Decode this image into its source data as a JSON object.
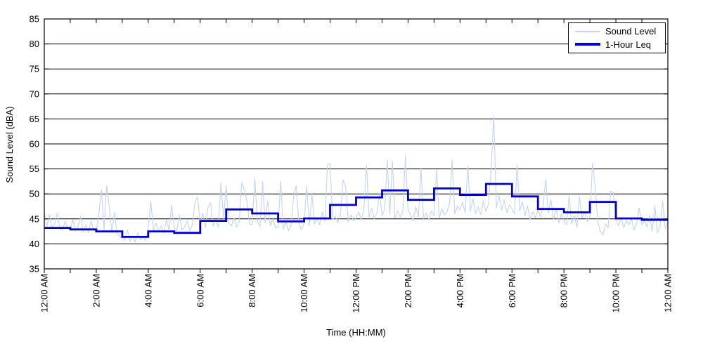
{
  "chart_data": {
    "type": "line",
    "title": "",
    "xlabel": "Time (HH:MM)",
    "ylabel": "Sound Level (dBA)",
    "xlim_hours": [
      0,
      24
    ],
    "ylim": [
      35,
      85
    ],
    "grid": "horizontal-solid-black",
    "legend_position": "top-right",
    "background": "#ffffff",
    "axis_color": "#000000",
    "yticks": [
      35,
      40,
      45,
      50,
      55,
      60,
      65,
      70,
      75,
      80,
      85
    ],
    "xticks": {
      "hours": [
        0,
        2,
        4,
        6,
        8,
        10,
        12,
        14,
        16,
        18,
        20,
        22,
        24
      ],
      "labels": [
        "12:00 AM",
        "2:00 AM",
        "4:00 AM",
        "6:00 AM",
        "8:00 AM",
        "10:00 AM",
        "12:00 PM",
        "2:00 PM",
        "4:00 PM",
        "6:00 PM",
        "8:00 PM",
        "10:00 PM",
        "12:00 AM"
      ]
    },
    "minor_xtick_every_hours": 1,
    "series": [
      {
        "name": "Sound Level",
        "kind": "line",
        "color": "#c3d4f2",
        "width": 1.1,
        "start_hour": 0,
        "sample_interval_min": 6,
        "values": [
          46.3,
          43.5,
          45.8,
          43.2,
          44.0,
          46.2,
          43.0,
          42.7,
          44.5,
          43.2,
          43.0,
          44.8,
          42.6,
          43.4,
          45.5,
          42.4,
          43.8,
          42.2,
          44.6,
          42.8,
          42.5,
          46.0,
          50.9,
          42.8,
          51.6,
          47.5,
          42.2,
          46.3,
          42.0,
          41.6,
          41.2,
          40.7,
          42.8,
          40.5,
          41.6,
          40.4,
          42.2,
          40.8,
          41.4,
          40.6,
          43.0,
          48.5,
          42.6,
          44.2,
          42.4,
          43.6,
          42.2,
          44.8,
          42.8,
          47.8,
          43.2,
          42.6,
          45.8,
          42.8,
          43.4,
          44.6,
          42.6,
          43.8,
          48.3,
          49.5,
          44.0,
          46.1,
          43.2,
          47.3,
          48.2,
          43.6,
          44.8,
          43.4,
          52.2,
          45.0,
          51.6,
          44.2,
          43.6,
          45.2,
          43.4,
          44.4,
          52.3,
          50.8,
          48.6,
          44.0,
          43.8,
          53.2,
          44.6,
          43.4,
          52.5,
          44.2,
          48.6,
          43.6,
          45.0,
          43.2,
          43.4,
          52.5,
          43.0,
          44.4,
          42.6,
          43.8,
          49.5,
          51.6,
          44.0,
          42.8,
          44.2,
          51.6,
          43.6,
          50.0,
          44.0,
          45.2,
          43.8,
          46.4,
          44.6,
          55.9,
          56.1,
          44.8,
          45.6,
          44.2,
          46.0,
          52.8,
          51.4,
          44.4,
          45.8,
          44.6,
          45.2,
          46.4,
          44.8,
          46.8,
          55.8,
          45.4,
          47.2,
          45.0,
          46.2,
          50.0,
          45.6,
          47.0,
          56.8,
          46.0,
          56.5,
          45.2,
          46.6,
          45.4,
          46.4,
          57.6,
          46.8,
          45.8,
          44.6,
          47.4,
          45.4,
          55.0,
          45.0,
          46.2,
          44.8,
          46.6,
          45.6,
          54.8,
          45.2,
          47.0,
          45.8,
          46.4,
          48.2,
          56.8,
          46.0,
          47.6,
          46.8,
          48.4,
          46.2,
          55.5,
          46.6,
          49.0,
          46.0,
          47.4,
          45.8,
          48.6,
          46.4,
          48.0,
          55.3,
          65.5,
          47.2,
          49.6,
          46.8,
          48.8,
          46.2,
          47.8,
          47.0,
          46.0,
          55.8,
          46.6,
          48.4,
          45.6,
          47.6,
          44.8,
          46.4,
          45.2,
          46.8,
          45.4,
          47.8,
          52.9,
          46.2,
          48.8,
          45.0,
          47.0,
          44.2,
          46.0,
          44.6,
          43.8,
          49.6,
          44.0,
          45.6,
          43.4,
          49.4,
          45.2,
          46.4,
          44.4,
          45.4,
          56.2,
          51.6,
          44.6,
          42.5,
          41.8,
          44.0,
          43.2,
          50.5,
          50.3,
          44.8,
          43.6,
          45.4,
          43.2,
          44.6,
          43.8,
          45.0,
          42.8,
          44.2,
          47.2,
          43.8,
          44.6,
          43.4,
          45.6,
          42.6,
          47.7,
          42.2,
          43.6,
          48.6,
          43.0,
          44.5
        ]
      },
      {
        "name": "1-Hour Leq",
        "kind": "step",
        "color": "#0000cd",
        "width": 2.8,
        "step_hours": 1,
        "values": [
          43.2,
          42.9,
          42.5,
          41.4,
          42.5,
          42.2,
          44.6,
          46.9,
          46.1,
          44.5,
          45.1,
          47.8,
          49.3,
          50.7,
          48.8,
          51.1,
          49.8,
          52.0,
          49.5,
          47.0,
          46.3,
          48.4,
          45.1,
          44.8
        ]
      }
    ]
  }
}
